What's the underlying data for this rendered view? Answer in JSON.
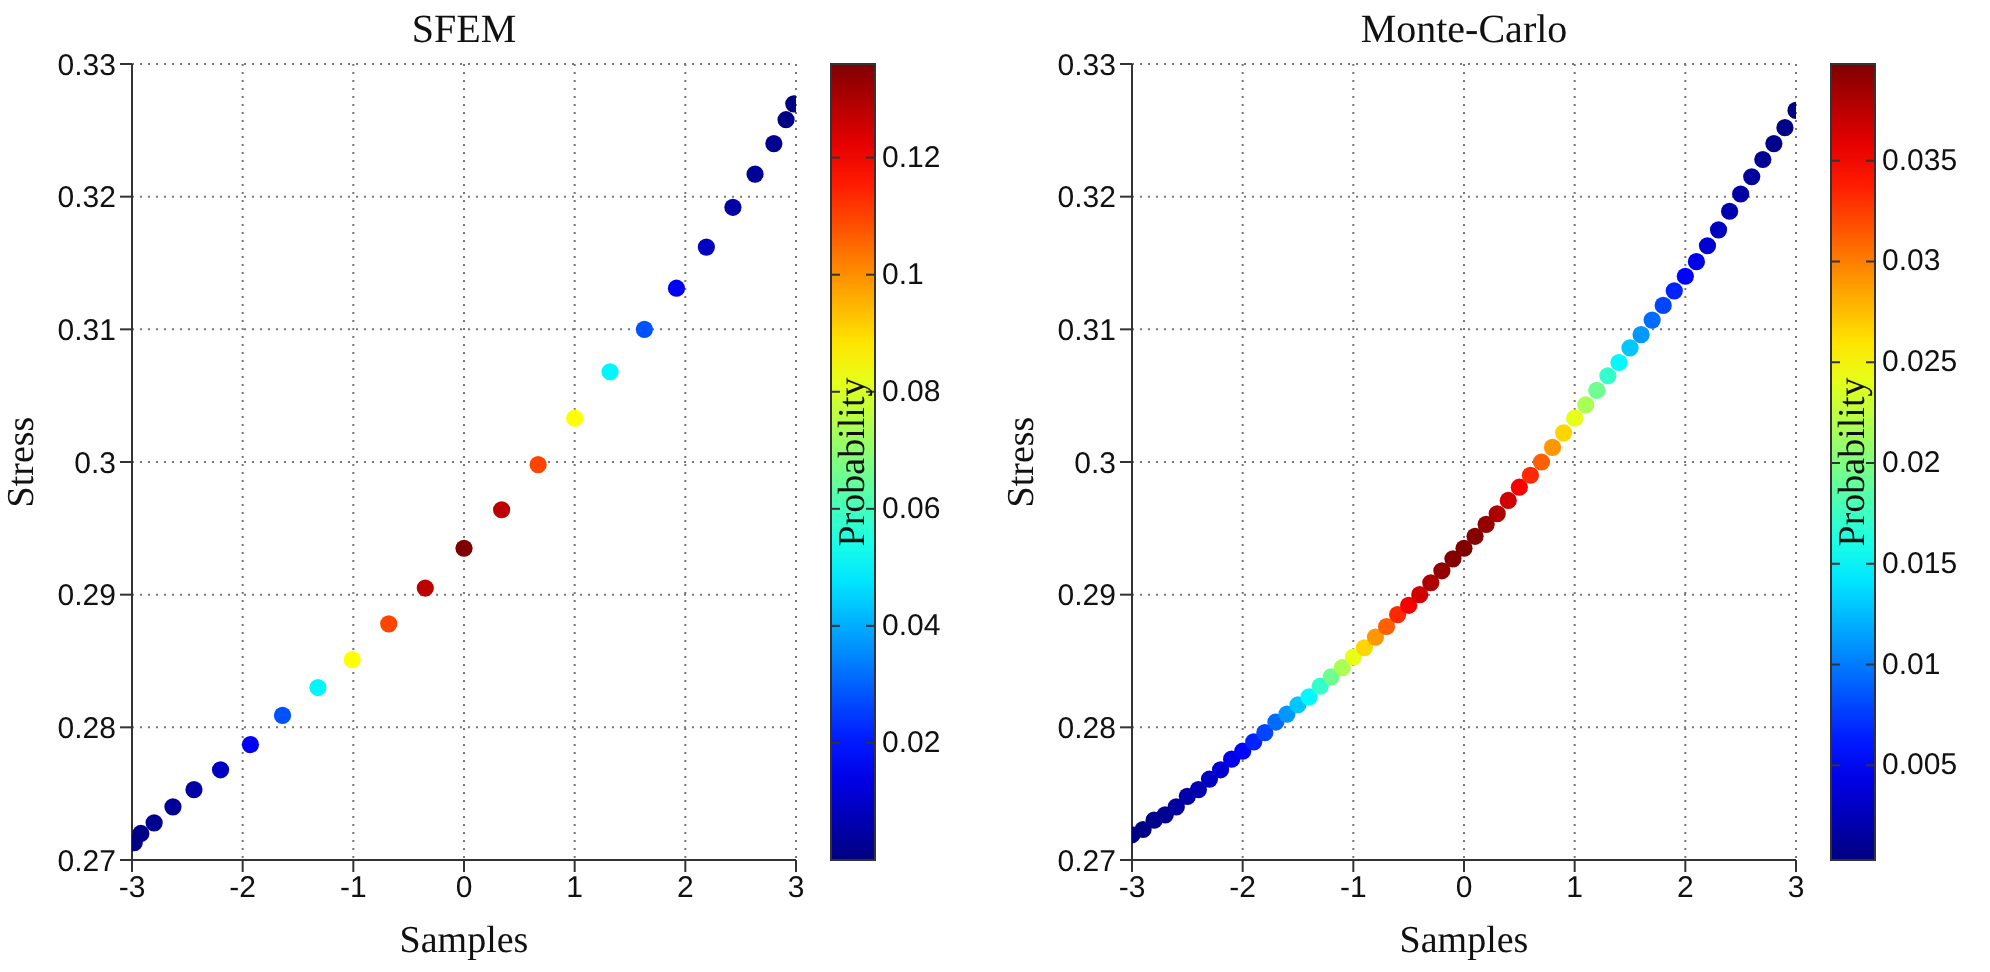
{
  "chart_data": [
    {
      "type": "scatter",
      "title": "SFEM",
      "xlabel": "Samples",
      "ylabel": "Stress",
      "clabel": "Probability",
      "grid": true,
      "marker": "circle",
      "xlim": [
        -3,
        3
      ],
      "xticks": [
        -3,
        -2,
        -1,
        0,
        1,
        2,
        3
      ],
      "ylim": [
        0.27,
        0.33
      ],
      "yticks": [
        0.27,
        0.28,
        0.29,
        0.3,
        0.31,
        0.32,
        0.33
      ],
      "clim": [
        0,
        0.136
      ],
      "cticks": [
        0.02,
        0.04,
        0.06,
        0.08,
        0.1,
        0.12
      ],
      "x": [
        -2.98,
        -2.92,
        -2.8,
        -2.63,
        -2.44,
        -2.2,
        -1.93,
        -1.64,
        -1.32,
        -1.01,
        -0.68,
        -0.35,
        0,
        0.34,
        0.67,
        1.0,
        1.32,
        1.63,
        1.92,
        2.19,
        2.43,
        2.63,
        2.8,
        2.91,
        2.98
      ],
      "values": [
        0.2713,
        0.272,
        0.2728,
        0.274,
        0.2753,
        0.2768,
        0.2787,
        0.2809,
        0.283,
        0.2851,
        0.2878,
        0.2905,
        0.2935,
        0.2964,
        0.2998,
        0.3033,
        0.3068,
        0.31,
        0.3131,
        0.3162,
        0.3192,
        0.3217,
        0.324,
        0.3258,
        0.327
      ],
      "cvalues": [
        0.0005,
        0.001,
        0.002,
        0.003,
        0.005,
        0.009,
        0.016,
        0.028,
        0.05,
        0.085,
        0.11,
        0.128,
        0.136,
        0.128,
        0.11,
        0.085,
        0.05,
        0.028,
        0.016,
        0.009,
        0.005,
        0.003,
        0.002,
        0.001,
        0.0005
      ]
    },
    {
      "type": "scatter",
      "title": "Monte-Carlo",
      "xlabel": "Samples",
      "ylabel": "Stress",
      "clabel": "Probability",
      "grid": true,
      "marker": "circle",
      "xlim": [
        -3,
        3
      ],
      "xticks": [
        -3,
        -2,
        -1,
        0,
        1,
        2,
        3
      ],
      "ylim": [
        0.27,
        0.33
      ],
      "yticks": [
        0.27,
        0.28,
        0.29,
        0.3,
        0.31,
        0.32,
        0.33
      ],
      "clim": [
        0.0003,
        0.0398
      ],
      "cticks": [
        0.005,
        0.01,
        0.015,
        0.02,
        0.025,
        0.03,
        0.035
      ],
      "x": [
        -3,
        -2.9,
        -2.8,
        -2.7,
        -2.6,
        -2.5,
        -2.4,
        -2.3,
        -2.2,
        -2.1,
        -2,
        -1.9,
        -1.8,
        -1.7,
        -1.6,
        -1.5,
        -1.4,
        -1.3,
        -1.2,
        -1.1,
        -1,
        -0.9,
        -0.8,
        -0.7,
        -0.6,
        -0.5,
        -0.4,
        -0.3,
        -0.2,
        -0.1,
        0,
        0.1,
        0.2,
        0.3,
        0.4,
        0.5,
        0.6,
        0.7,
        0.8,
        0.9,
        1,
        1.1,
        1.2,
        1.3,
        1.4,
        1.5,
        1.6,
        1.7,
        1.8,
        1.9,
        2,
        2.1,
        2.2,
        2.3,
        2.4,
        2.5,
        2.6,
        2.7,
        2.8,
        2.9,
        3
      ],
      "values": [
        0.2719,
        0.2723,
        0.273,
        0.2734,
        0.274,
        0.2748,
        0.2753,
        0.2761,
        0.2768,
        0.2776,
        0.2782,
        0.2789,
        0.2796,
        0.2804,
        0.281,
        0.2817,
        0.2823,
        0.2831,
        0.2838,
        0.2845,
        0.2853,
        0.286,
        0.2868,
        0.2876,
        0.2885,
        0.2892,
        0.29,
        0.2909,
        0.2918,
        0.2927,
        0.2935,
        0.2944,
        0.2953,
        0.2961,
        0.2971,
        0.2981,
        0.299,
        0.3,
        0.3011,
        0.3022,
        0.3033,
        0.3043,
        0.3054,
        0.3065,
        0.3075,
        0.3086,
        0.3096,
        0.3107,
        0.3118,
        0.3129,
        0.314,
        0.3151,
        0.3163,
        0.3175,
        0.3189,
        0.3202,
        0.3215,
        0.3228,
        0.324,
        0.3252,
        0.3265
      ],
      "cvalues": [
        0.0004,
        0.0006,
        0.0008,
        0.001,
        0.0014,
        0.0018,
        0.0022,
        0.0028,
        0.0035,
        0.0044,
        0.0054,
        0.0066,
        0.0079,
        0.0094,
        0.0111,
        0.0129,
        0.0149,
        0.0171,
        0.0194,
        0.0217,
        0.0241,
        0.0266,
        0.029,
        0.0312,
        0.0333,
        0.0351,
        0.0367,
        0.038,
        0.039,
        0.0396,
        0.0398,
        0.0396,
        0.039,
        0.038,
        0.0367,
        0.0351,
        0.0333,
        0.0312,
        0.029,
        0.0266,
        0.0241,
        0.0217,
        0.0194,
        0.0171,
        0.0149,
        0.0129,
        0.0111,
        0.0094,
        0.0079,
        0.0066,
        0.0054,
        0.0044,
        0.0035,
        0.0028,
        0.0022,
        0.0018,
        0.0014,
        0.001,
        0.0008,
        0.0006,
        0.0004
      ]
    }
  ]
}
